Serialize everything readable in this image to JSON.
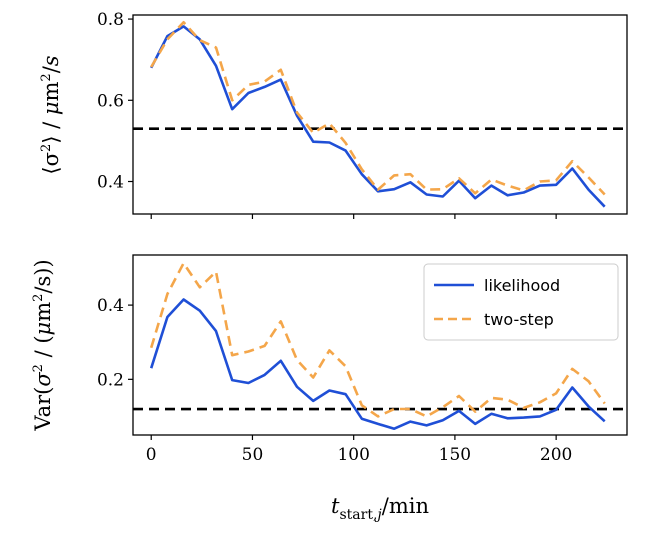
{
  "chart_data": [
    {
      "type": "line",
      "ylabel": "⟨σ²⟩ / μm²/s",
      "xlim": [
        -9,
        235
      ],
      "ylim": [
        0.32,
        0.81
      ],
      "yticks": [
        0.4,
        0.6,
        0.8
      ],
      "xticks": [
        0,
        50,
        100,
        150,
        200
      ],
      "grid": false,
      "legend": "none",
      "x": [
        0,
        8,
        16,
        24,
        32,
        40,
        48,
        56,
        64,
        72,
        80,
        88,
        96,
        104,
        112,
        120,
        128,
        136,
        144,
        152,
        160,
        168,
        176,
        184,
        192,
        200,
        208,
        216,
        224
      ],
      "series": [
        {
          "name": "likelihood",
          "color": "#1f4fd6",
          "style": "solid",
          "values": [
            0.68,
            0.758,
            0.782,
            0.75,
            0.685,
            0.578,
            0.618,
            0.633,
            0.651,
            0.562,
            0.498,
            0.496,
            0.476,
            0.418,
            0.376,
            0.381,
            0.398,
            0.368,
            0.363,
            0.402,
            0.359,
            0.39,
            0.366,
            0.373,
            0.39,
            0.392,
            0.432,
            0.38,
            0.338
          ]
        },
        {
          "name": "two-step",
          "color": "#f4a64a",
          "style": "dashed",
          "values": [
            0.682,
            0.75,
            0.792,
            0.748,
            0.73,
            0.6,
            0.638,
            0.646,
            0.675,
            0.57,
            0.52,
            0.543,
            0.495,
            0.43,
            0.38,
            0.415,
            0.418,
            0.38,
            0.381,
            0.408,
            0.371,
            0.405,
            0.39,
            0.378,
            0.4,
            0.403,
            0.45,
            0.41,
            0.368
          ]
        }
      ],
      "reference_line": {
        "y": 0.53,
        "color": "#000000",
        "style": "dashed"
      }
    },
    {
      "type": "line",
      "ylabel": "Var(σ² / (μm²/s))",
      "xlabel": "t_start,j/min",
      "xlim": [
        -9,
        235
      ],
      "ylim": [
        0.05,
        0.535
      ],
      "yticks": [
        0.2,
        0.4
      ],
      "xticks": [
        0,
        50,
        100,
        150,
        200
      ],
      "grid": false,
      "legend": "top-right",
      "x": [
        0,
        8,
        16,
        24,
        32,
        40,
        48,
        56,
        64,
        72,
        80,
        88,
        96,
        104,
        112,
        120,
        128,
        136,
        144,
        152,
        160,
        168,
        176,
        184,
        192,
        200,
        208,
        216,
        224
      ],
      "series": [
        {
          "name": "likelihood",
          "color": "#1f4fd6",
          "style": "solid",
          "values": [
            0.23,
            0.368,
            0.415,
            0.385,
            0.33,
            0.198,
            0.19,
            0.212,
            0.25,
            0.18,
            0.142,
            0.17,
            0.16,
            0.094,
            0.08,
            0.067,
            0.086,
            0.076,
            0.09,
            0.115,
            0.08,
            0.107,
            0.095,
            0.097,
            0.1,
            0.118,
            0.178,
            0.127,
            0.087
          ]
        },
        {
          "name": "two-step",
          "color": "#f4a64a",
          "style": "dashed",
          "values": [
            0.285,
            0.43,
            0.513,
            0.448,
            0.49,
            0.265,
            0.275,
            0.29,
            0.356,
            0.252,
            0.205,
            0.278,
            0.235,
            0.13,
            0.1,
            0.12,
            0.12,
            0.1,
            0.125,
            0.155,
            0.113,
            0.15,
            0.145,
            0.123,
            0.138,
            0.162,
            0.228,
            0.195,
            0.135
          ]
        }
      ],
      "reference_line": {
        "y": 0.12,
        "color": "#000000",
        "style": "dashed"
      }
    }
  ]
}
